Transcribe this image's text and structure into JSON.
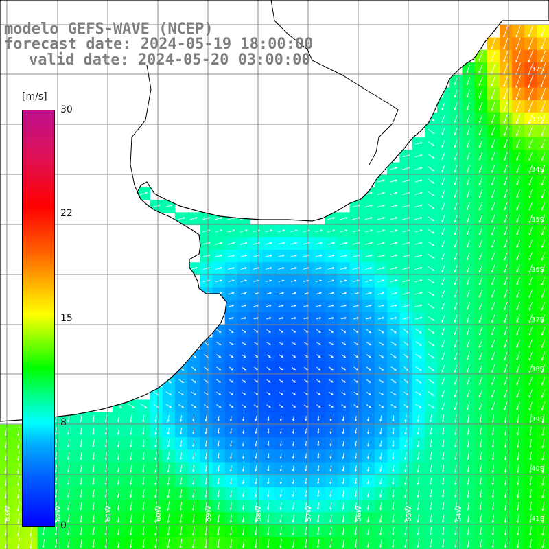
{
  "map": {
    "title_lines": [
      "modelo GEFS-WAVE (NCEP)",
      "forecast date: 2024-05-19 18:00:00",
      "valid date: 2024-05-20 03:00:00"
    ],
    "variable": "wind speed",
    "colorbar": {
      "unit_label": "[m/s]",
      "ticks": [
        "30",
        "22",
        "15",
        "8",
        "0"
      ],
      "range": [
        0,
        30
      ],
      "colors": [
        "#0000ff",
        "#00b0ff",
        "#00ffff",
        "#00ff00",
        "#ffff00",
        "#ff6000",
        "#ff0000",
        "#c0108f"
      ]
    },
    "latitude_labels": [
      "32S",
      "33S",
      "34S",
      "35S",
      "36S",
      "37S",
      "38S",
      "39S",
      "40S",
      "41S"
    ],
    "longitude_labels": [
      "63W",
      "62W",
      "61W",
      "60W",
      "59W",
      "58W",
      "57W",
      "56W",
      "55W",
      "54W"
    ],
    "colors": {
      "land": "#ffffff",
      "coastline": "#000000",
      "gridline": "#808080",
      "title": "#7f7f7f",
      "wind_arrow": "#ffffff"
    }
  }
}
